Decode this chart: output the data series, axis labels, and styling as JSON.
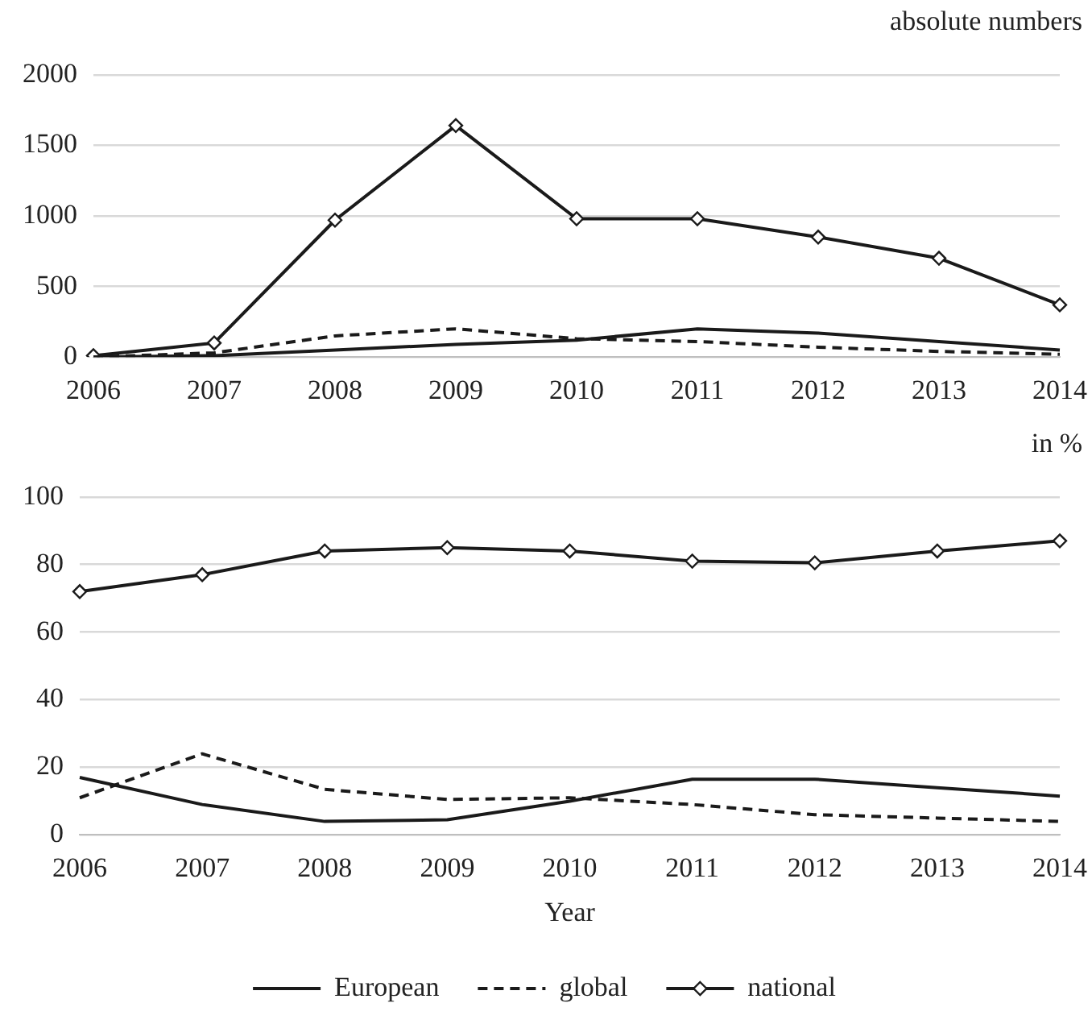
{
  "chart_data": [
    {
      "type": "line",
      "title": "absolute numbers",
      "categories": [
        "2006",
        "2007",
        "2008",
        "2009",
        "2010",
        "2011",
        "2012",
        "2013",
        "2014"
      ],
      "series": [
        {
          "color": "#1a1a1a",
          "values": [
            0,
            10,
            50,
            90,
            120,
            200,
            170,
            110,
            50
          ],
          "marker": "none",
          "line_style": "solid"
        },
        {
          "color": "#1a1a1a",
          "values": [
            0,
            30,
            150,
            200,
            130,
            110,
            70,
            40,
            20
          ],
          "marker": "none",
          "line_style": "dashed"
        },
        {
          "color": "#1a1a1a",
          "values": [
            10,
            100,
            970,
            1640,
            980,
            980,
            850,
            700,
            370
          ],
          "marker": "diamond",
          "line_style": "solid"
        }
      ],
      "ylim": [
        0,
        2000
      ],
      "yticks": [
        0,
        500,
        1000,
        1500,
        2000
      ],
      "grid": "y",
      "legend": false
    },
    {
      "type": "line",
      "title": "in %",
      "xlabel": "Year",
      "categories": [
        "2006",
        "2007",
        "2008",
        "2009",
        "2010",
        "2011",
        "2012",
        "2013",
        "2014"
      ],
      "series": [
        {
          "name": "European",
          "color": "#1a1a1a",
          "values": [
            17,
            9,
            4,
            4.5,
            10,
            16.5,
            16.5,
            14,
            11.5
          ],
          "marker": "none",
          "line_style": "solid"
        },
        {
          "name": "global",
          "color": "#1a1a1a",
          "values": [
            11,
            24,
            13.5,
            10.5,
            11,
            9,
            6,
            5,
            4
          ],
          "marker": "none",
          "line_style": "dashed"
        },
        {
          "name": "national",
          "color": "#1a1a1a",
          "values": [
            72,
            77,
            84,
            85,
            84,
            81,
            80.5,
            84,
            87
          ],
          "marker": "diamond",
          "line_style": "solid"
        }
      ],
      "ylim": [
        0,
        100
      ],
      "yticks": [
        0,
        20,
        40,
        60,
        80,
        100
      ],
      "grid": "y",
      "legend": "bottom"
    }
  ]
}
